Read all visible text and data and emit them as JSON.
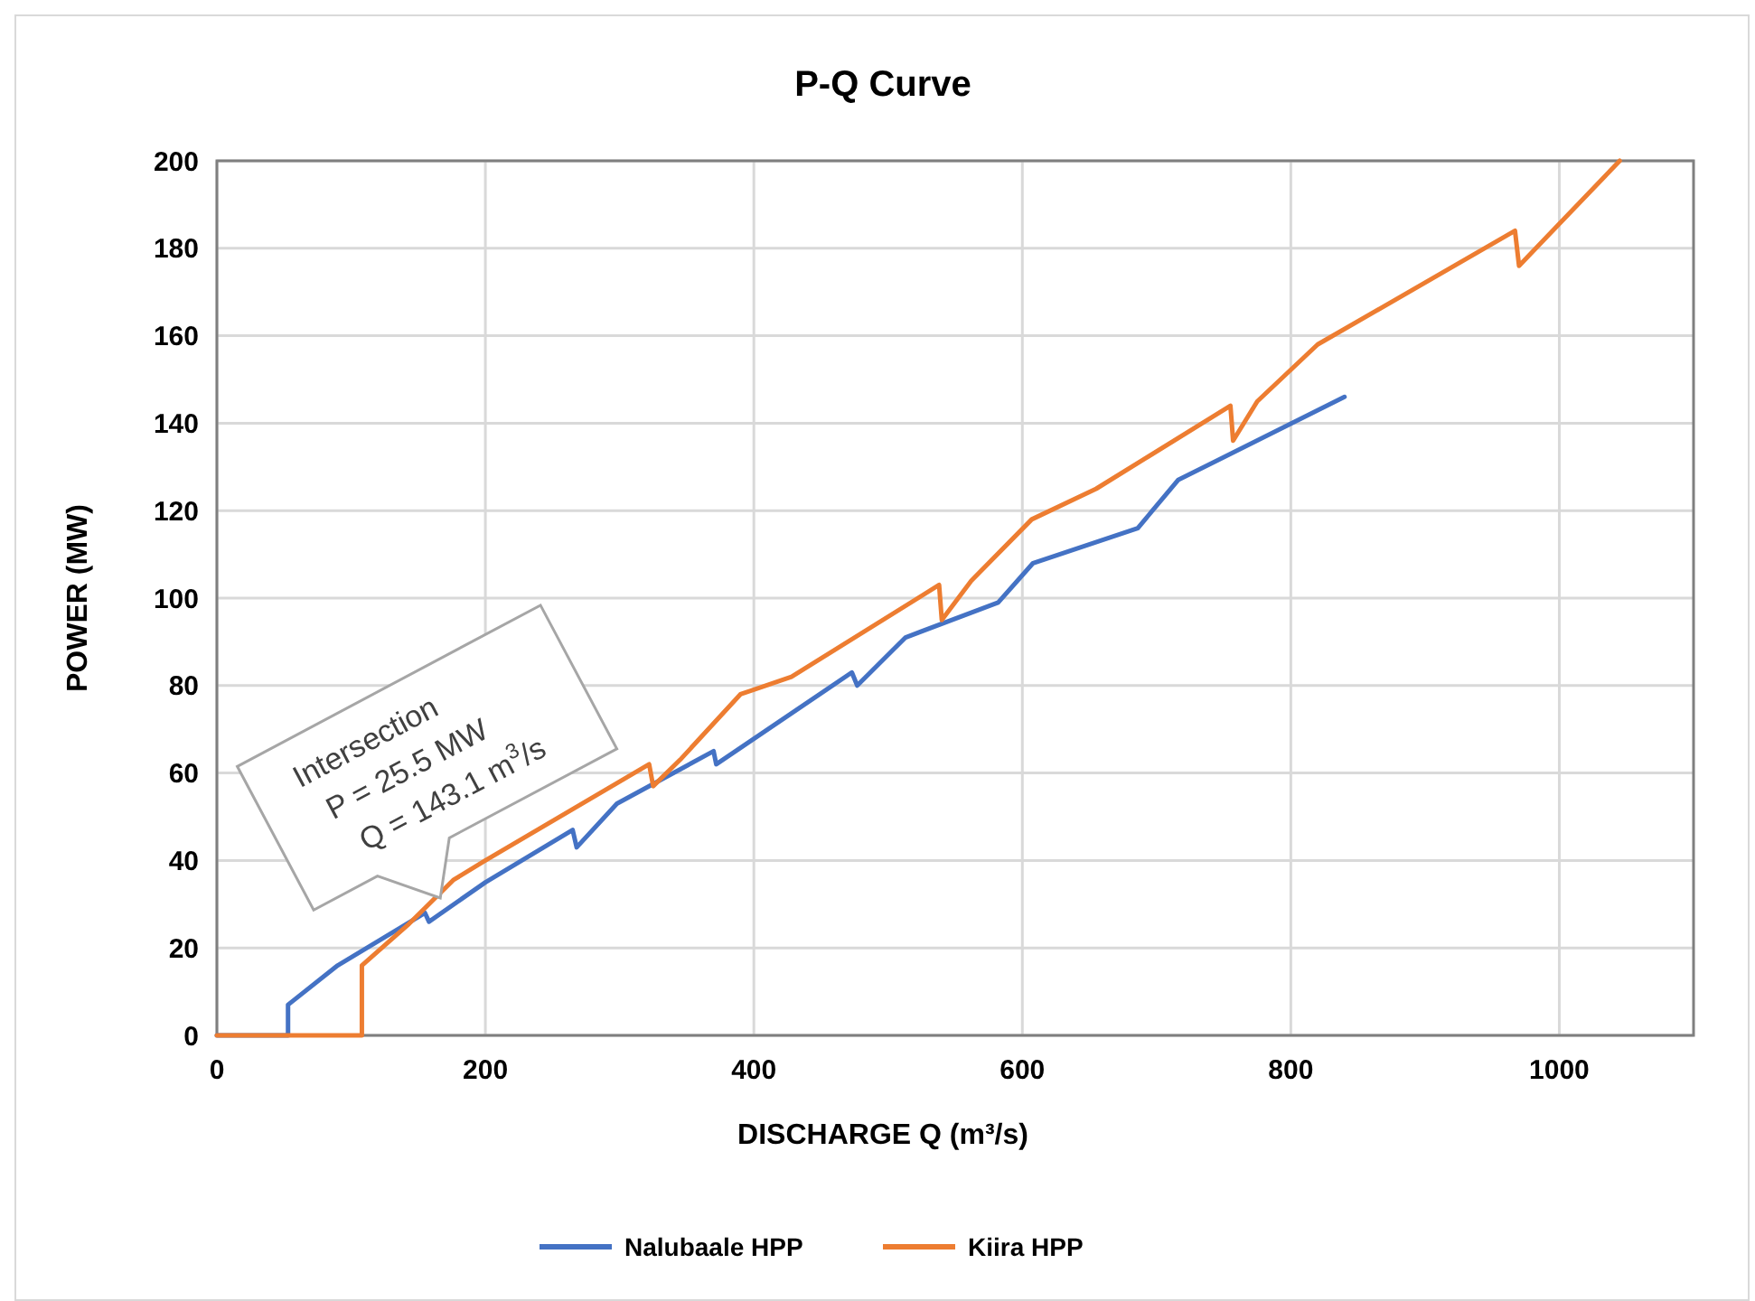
{
  "chart_data": {
    "type": "line",
    "title": "P-Q Curve",
    "xlabel": "DISCHARGE Q (m³/s)",
    "ylabel": "POWER (MW)",
    "xlim": [
      0,
      1100
    ],
    "xticks": [
      0,
      200,
      400,
      600,
      800,
      1000
    ],
    "ylim": [
      0,
      200
    ],
    "yticks": [
      0,
      20,
      40,
      60,
      80,
      100,
      120,
      140,
      160,
      180,
      200
    ],
    "grid": true,
    "legend": "bottom",
    "marker": "none",
    "line_style": "solid",
    "annotations": [
      {
        "text": "Intersection\nP = 25.5 MW\nQ = 143.1 m$^{3}$/s",
        "x": 143.1,
        "y": 25.5
      }
    ],
    "series": [
      {
        "name": "Nalubaale HPP",
        "color": "#4472c4",
        "x": [
          0,
          53,
          53,
          90,
          155,
          158,
          200,
          265,
          268,
          298,
          370,
          372,
          473,
          477,
          513,
          582,
          608,
          686,
          716,
          840
        ],
        "values": [
          0,
          0,
          7,
          16,
          28,
          26,
          35,
          47,
          43,
          53,
          65,
          62,
          83,
          80,
          91,
          99,
          108,
          116,
          127,
          146
        ]
      },
      {
        "name": "Kiira HPP",
        "color": "#ed7d31",
        "x": [
          0,
          108,
          108,
          143.1,
          176,
          200,
          322,
          325,
          345,
          390,
          428,
          538,
          540,
          562,
          607,
          655,
          755,
          757,
          775,
          820,
          967,
          970,
          1045
        ],
        "values": [
          0,
          0,
          16,
          25.5,
          35.5,
          40,
          62,
          57,
          63,
          78,
          82,
          103,
          95,
          104,
          118,
          125,
          144,
          136,
          145,
          158,
          184,
          176,
          200
        ]
      }
    ]
  }
}
